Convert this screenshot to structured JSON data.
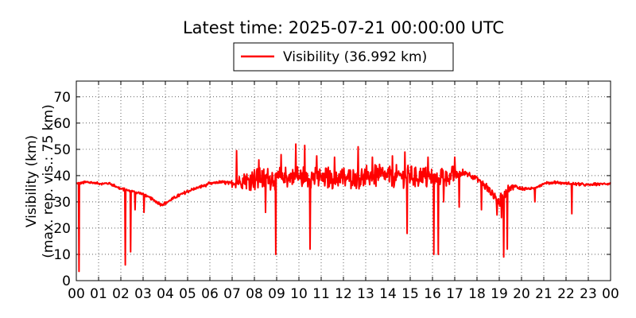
{
  "chart_data": {
    "type": "line",
    "title": "Latest time: 2025-07-21 00:00:00 UTC",
    "xlabel": "",
    "ylabel_lines": [
      "Visibility (km)",
      "(max. rep. vis.: 75 km)"
    ],
    "xlim": [
      0,
      24
    ],
    "ylim": [
      0,
      76
    ],
    "x_ticks": [
      0,
      1,
      2,
      3,
      4,
      5,
      6,
      7,
      8,
      9,
      10,
      11,
      12,
      13,
      14,
      15,
      16,
      17,
      18,
      19,
      20,
      21,
      22,
      23,
      24
    ],
    "x_tick_labels": [
      "00",
      "01",
      "02",
      "03",
      "04",
      "05",
      "06",
      "07",
      "08",
      "09",
      "10",
      "11",
      "12",
      "13",
      "14",
      "15",
      "16",
      "17",
      "18",
      "19",
      "20",
      "21",
      "22",
      "23",
      "00"
    ],
    "y_ticks": [
      0,
      10,
      20,
      30,
      40,
      50,
      60,
      70
    ],
    "y_tick_labels": [
      "0",
      "10",
      "20",
      "30",
      "40",
      "50",
      "60",
      "70"
    ],
    "grid": true,
    "legend_position": "top-center",
    "series": [
      {
        "name": "Visibility (36.992 km)",
        "color": "#ff0000",
        "base": [
          [
            0,
            37
          ],
          [
            0.5,
            37.5
          ],
          [
            1,
            37
          ],
          [
            1.5,
            37
          ],
          [
            2,
            35
          ],
          [
            2.5,
            34
          ],
          [
            3,
            33
          ],
          [
            3.5,
            30.5
          ],
          [
            3.8,
            29
          ],
          [
            4,
            29.5
          ],
          [
            4.5,
            32
          ],
          [
            5,
            34
          ],
          [
            5.5,
            35.5
          ],
          [
            6,
            37
          ],
          [
            6.5,
            37.5
          ],
          [
            7,
            37
          ],
          [
            7.5,
            38
          ],
          [
            8,
            38.5
          ],
          [
            9,
            39
          ],
          [
            10,
            39.5
          ],
          [
            11,
            39
          ],
          [
            12,
            39
          ],
          [
            13,
            39.5
          ],
          [
            14,
            40
          ],
          [
            15,
            39.5
          ],
          [
            16,
            39
          ],
          [
            17,
            40
          ],
          [
            17.5,
            41
          ],
          [
            18,
            39
          ],
          [
            18.5,
            35
          ],
          [
            19,
            30
          ],
          [
            19.3,
            34
          ],
          [
            19.6,
            36
          ],
          [
            20,
            35
          ],
          [
            20.5,
            35
          ],
          [
            21,
            37
          ],
          [
            21.5,
            37.5
          ],
          [
            22,
            37
          ],
          [
            23,
            36.5
          ],
          [
            24,
            37
          ]
        ],
        "noise_envelope": [
          [
            0,
            0.5
          ],
          [
            6.8,
            0.7
          ],
          [
            7.3,
            2.5
          ],
          [
            8,
            4.5
          ],
          [
            16.8,
            4.5
          ],
          [
            17.5,
            1.2
          ],
          [
            18.2,
            1.2
          ],
          [
            18.7,
            3
          ],
          [
            19.5,
            1.5
          ],
          [
            20.2,
            0.6
          ],
          [
            24,
            0.6
          ]
        ],
        "spikes_down": [
          [
            0.12,
            3.5
          ],
          [
            2.2,
            6
          ],
          [
            2.45,
            11
          ],
          [
            2.65,
            27
          ],
          [
            3.05,
            26
          ],
          [
            8.5,
            26
          ],
          [
            8.95,
            10
          ],
          [
            10.5,
            12
          ],
          [
            11.6,
            29
          ],
          [
            13.3,
            23
          ],
          [
            14.85,
            18
          ],
          [
            16.05,
            10
          ],
          [
            16.25,
            10
          ],
          [
            16.5,
            30
          ],
          [
            17.2,
            28
          ],
          [
            18.2,
            27
          ],
          [
            18.9,
            25
          ],
          [
            19.1,
            24
          ],
          [
            19.2,
            9
          ],
          [
            19.35,
            12
          ],
          [
            20.6,
            30
          ],
          [
            22.25,
            25.5
          ]
        ],
        "spikes_up": [
          [
            7.2,
            49.5
          ],
          [
            8.2,
            46
          ],
          [
            9.2,
            48
          ],
          [
            9.85,
            52
          ],
          [
            10.25,
            51.5
          ],
          [
            10.8,
            47.5
          ],
          [
            11.6,
            47
          ],
          [
            12.65,
            51
          ],
          [
            13.3,
            47
          ],
          [
            14.2,
            47.5
          ],
          [
            14.75,
            49
          ],
          [
            15.8,
            47
          ],
          [
            17,
            47
          ]
        ]
      }
    ]
  }
}
